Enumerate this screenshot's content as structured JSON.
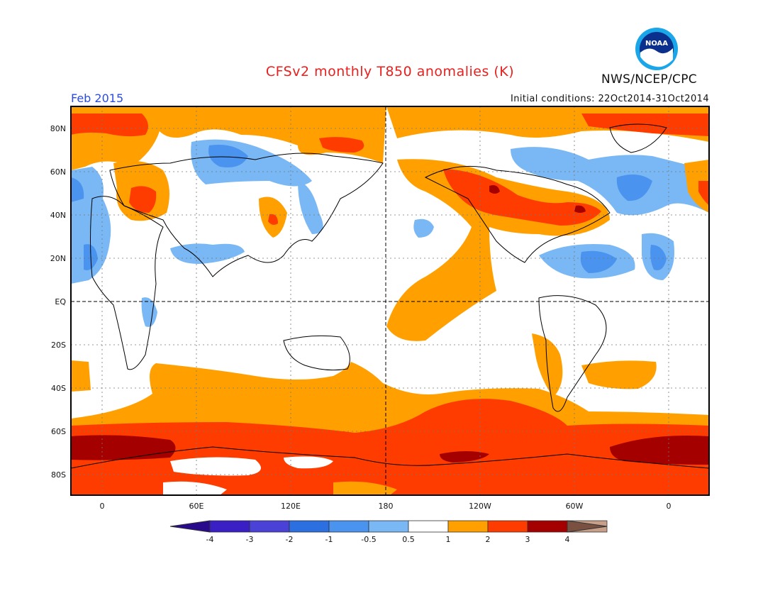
{
  "header": {
    "title": "CFSv2 monthly T850 anomalies (K)",
    "agency": "NWS/NCEP/CPC",
    "logo_text": "NOAA",
    "month": "Feb 2015",
    "initial_conditions": "Initial conditions: 22Oct2014-31Oct2014"
  },
  "map": {
    "lat_labels": [
      "80N",
      "60N",
      "40N",
      "20N",
      "EQ",
      "20S",
      "40S",
      "60S",
      "80S"
    ],
    "lon_labels": [
      "0",
      "60E",
      "120E",
      "180",
      "120W",
      "60W",
      "0"
    ]
  },
  "colorbar": {
    "labels": [
      "-4",
      "-3",
      "-2",
      "-1",
      "-0.5",
      "0.5",
      "1",
      "2",
      "3",
      "4"
    ],
    "colors": [
      "#3a1fc4",
      "#4a42d6",
      "#2c6fe0",
      "#4a93ee",
      "#7ab8f5",
      "#ffffff",
      "#ffa000",
      "#ff3c00",
      "#a50000",
      "#c8a08a"
    ],
    "left_cap_color": "#280a8c",
    "right_cap_color": "#7a5040"
  },
  "colors": {
    "warm1": "#ffa000",
    "warm2": "#ff3c00",
    "warm3": "#a50000",
    "cool1": "#7ab8f5",
    "cool2": "#4a93ee"
  }
}
